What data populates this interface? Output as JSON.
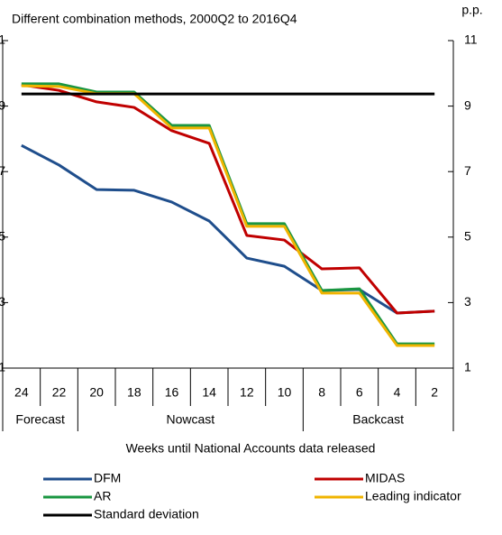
{
  "chart_data": {
    "type": "line",
    "title": "Different combination methods, 2000Q2 to 2016Q4",
    "y_unit": "p.p.",
    "x_label": "Weeks until National Accounts data released",
    "categories": [
      "24",
      "22",
      "20",
      "18",
      "16",
      "14",
      "12",
      "10",
      "8",
      "6",
      "4",
      "2"
    ],
    "category_groups": [
      "Forecast",
      "Forecast",
      "Nowcast",
      "Nowcast",
      "Nowcast",
      "Nowcast",
      "Nowcast",
      "Nowcast",
      "Backcast",
      "Backcast",
      "Backcast",
      "Backcast"
    ],
    "ylim": [
      1,
      11
    ],
    "yticks": [
      1,
      3,
      5,
      7,
      9,
      11
    ],
    "series": [
      {
        "name": "DFM",
        "color": "#1f4e8c",
        "values": [
          7.8,
          7.2,
          6.45,
          6.43,
          6.07,
          5.49,
          4.36,
          4.11,
          3.37,
          3.4,
          2.68,
          2.74
        ]
      },
      {
        "name": "MIDAS",
        "color": "#c00000",
        "values": [
          9.65,
          9.48,
          9.13,
          8.96,
          8.25,
          7.86,
          5.05,
          4.91,
          4.03,
          4.06,
          2.68,
          2.74
        ]
      },
      {
        "name": "AR",
        "color": "#1a9641",
        "values": [
          9.68,
          9.68,
          9.43,
          9.43,
          8.41,
          8.41,
          5.41,
          5.41,
          3.37,
          3.42,
          1.74,
          1.74
        ]
      },
      {
        "name": "Leading indicator",
        "color": "#f0b400",
        "values": [
          9.62,
          9.6,
          9.38,
          9.38,
          8.33,
          8.33,
          5.33,
          5.33,
          3.29,
          3.29,
          1.69,
          1.69
        ]
      },
      {
        "name": "Standard deviation",
        "color": "#000000",
        "values": [
          9.37,
          9.37,
          9.37,
          9.37,
          9.37,
          9.37,
          9.37,
          9.37,
          9.37,
          9.37,
          9.37,
          9.37
        ]
      }
    ]
  }
}
